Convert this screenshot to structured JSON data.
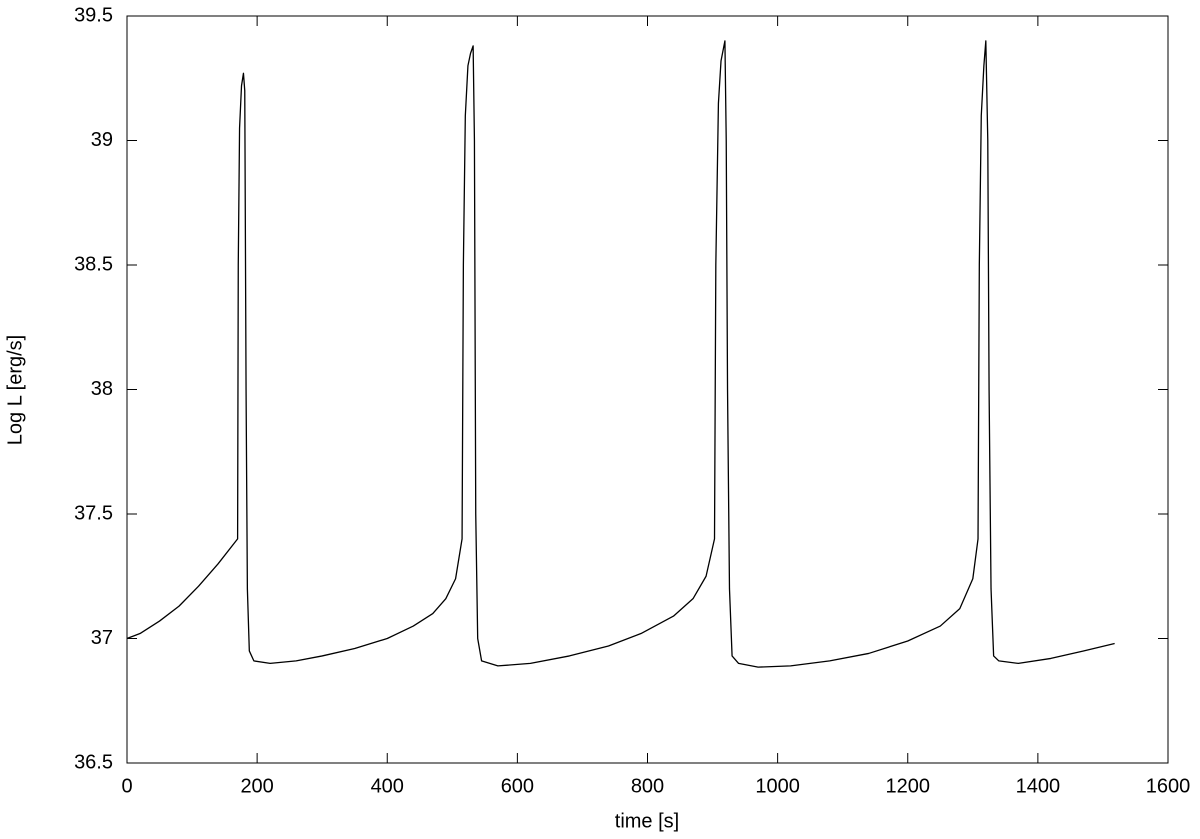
{
  "chart_data": {
    "type": "line",
    "xlabel": "time [s]",
    "ylabel": "Log L [erg/s]",
    "xlim": [
      0,
      1600
    ],
    "xticks": [
      0,
      200,
      400,
      600,
      800,
      1000,
      1200,
      1400,
      1600
    ],
    "ylim": [
      36.5,
      39.5
    ],
    "yticks": [
      36.5,
      37,
      37.5,
      38,
      38.5,
      39,
      39.5
    ],
    "grid": false,
    "x": [
      0,
      20,
      50,
      80,
      110,
      140,
      170,
      171,
      173,
      176,
      179,
      181,
      183,
      185,
      188,
      195,
      220,
      260,
      300,
      350,
      400,
      440,
      470,
      490,
      505,
      515,
      517,
      520,
      524,
      528,
      532,
      534,
      536,
      539,
      545,
      570,
      620,
      680,
      740,
      790,
      840,
      870,
      890,
      903,
      905,
      909,
      913,
      919,
      921,
      923,
      926,
      930,
      940,
      970,
      1020,
      1080,
      1140,
      1200,
      1250,
      1280,
      1300,
      1308,
      1310,
      1313,
      1317,
      1320,
      1323,
      1325,
      1328,
      1332,
      1340,
      1370,
      1420,
      1470,
      1518
    ],
    "series": [
      {
        "color": "#000000",
        "values": [
          37.0,
          37.02,
          37.07,
          37.13,
          37.21,
          37.3,
          37.4,
          38.5,
          39.05,
          39.22,
          39.27,
          39.2,
          38.0,
          37.2,
          36.95,
          36.91,
          36.9,
          36.91,
          36.93,
          36.96,
          37.0,
          37.05,
          37.1,
          37.16,
          37.24,
          37.4,
          38.5,
          39.1,
          39.3,
          39.35,
          39.38,
          39.0,
          37.5,
          37.0,
          36.91,
          36.89,
          36.9,
          36.93,
          36.97,
          37.02,
          37.09,
          37.16,
          37.25,
          37.4,
          38.5,
          39.15,
          39.32,
          39.4,
          39.0,
          38.0,
          37.2,
          36.93,
          36.9,
          36.885,
          36.89,
          36.91,
          36.94,
          36.99,
          37.05,
          37.12,
          37.24,
          37.4,
          38.5,
          39.1,
          39.3,
          39.4,
          39.0,
          38.0,
          37.2,
          36.93,
          36.91,
          36.9,
          36.92,
          36.95,
          36.98
        ]
      }
    ]
  }
}
